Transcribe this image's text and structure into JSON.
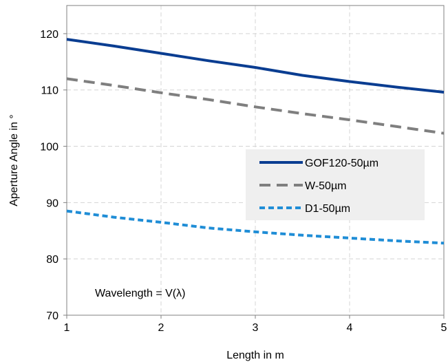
{
  "chart_data": {
    "type": "line",
    "title": "",
    "xlabel": "Length in m",
    "ylabel": "Aperture Angle in °",
    "xlim": [
      1,
      5
    ],
    "ylim": [
      70,
      125
    ],
    "xticks": [
      1,
      2,
      3,
      4,
      5
    ],
    "yticks": [
      70,
      80,
      90,
      100,
      110,
      120
    ],
    "grid": true,
    "legend_position": "center-right",
    "annotation": "Wavelength = V(λ)",
    "series": [
      {
        "name": "GOF120-50µm",
        "color": "#0a3d91",
        "style": "solid",
        "x": [
          1,
          1.5,
          2,
          2.5,
          3,
          3.5,
          4,
          4.5,
          5
        ],
        "y": [
          119.0,
          117.8,
          116.5,
          115.2,
          114.0,
          112.6,
          111.5,
          110.5,
          109.6
        ]
      },
      {
        "name": "W-50µm",
        "color": "#7f7f7f",
        "style": "dashed",
        "x": [
          1,
          1.5,
          2,
          2.5,
          3,
          3.5,
          4,
          4.5,
          5
        ],
        "y": [
          112.0,
          110.8,
          109.5,
          108.3,
          107.0,
          105.8,
          104.7,
          103.5,
          102.3
        ]
      },
      {
        "name": "D1-50µm",
        "color": "#1f8dd6",
        "style": "dotted",
        "x": [
          1,
          1.5,
          2,
          2.5,
          3,
          3.5,
          4,
          4.5,
          5
        ],
        "y": [
          88.5,
          87.4,
          86.5,
          85.5,
          84.8,
          84.2,
          83.7,
          83.2,
          82.8
        ]
      }
    ]
  }
}
